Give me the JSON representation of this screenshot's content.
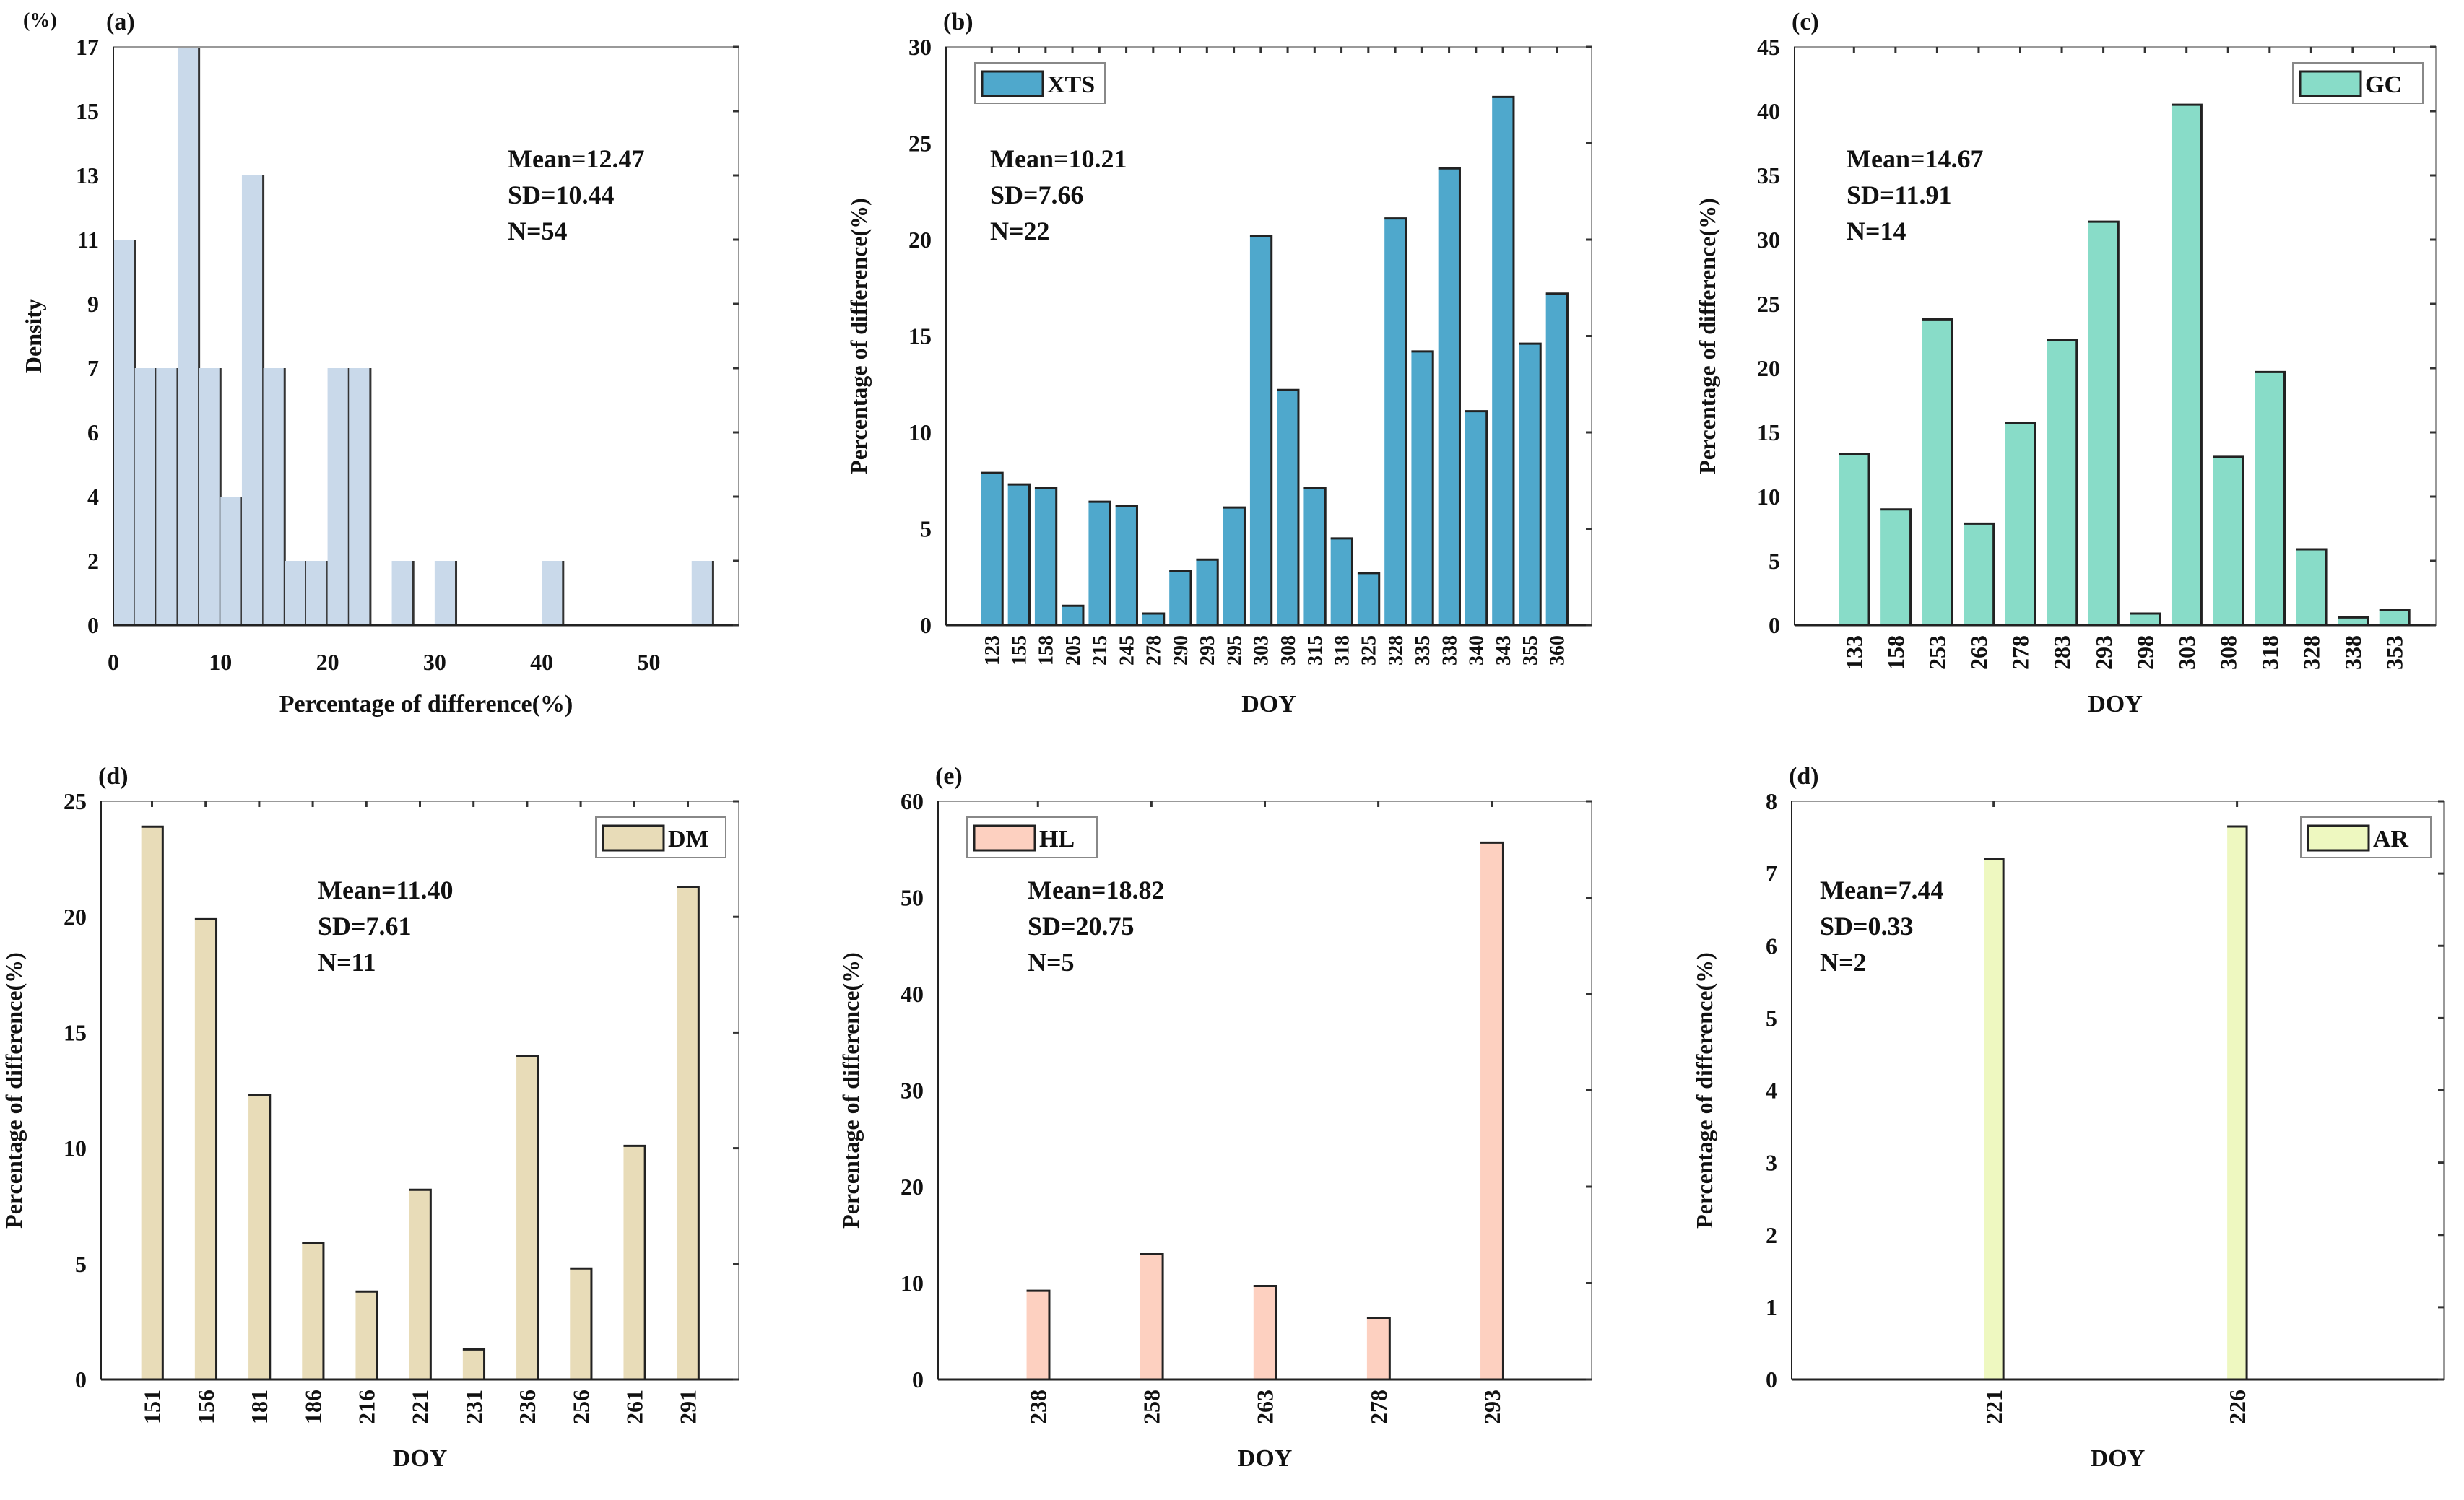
{
  "chart_data": [
    {
      "type": "bar",
      "subtype": "histogram",
      "panel_label": "(a)",
      "unit_label": "(%)",
      "xlabel": "Percentage of difference(%)",
      "ylabel": "Density",
      "bin_edges": [
        0,
        2,
        4,
        6,
        8,
        10,
        12,
        14,
        16,
        18,
        20,
        22,
        24,
        26,
        28,
        30,
        32,
        34,
        36,
        38,
        40,
        42,
        44,
        46,
        48,
        50,
        52,
        54,
        56
      ],
      "values": [
        11,
        7,
        7,
        17,
        7,
        4,
        13,
        7,
        2,
        2,
        7,
        7,
        0,
        2,
        0,
        2,
        0,
        0,
        0,
        0,
        2,
        0,
        0,
        0,
        0,
        0,
        0,
        2
      ],
      "xticks": [
        "0",
        "10",
        "20",
        "30",
        "40",
        "50"
      ],
      "yticks": [
        "0",
        "2",
        "4",
        "6",
        "7",
        "9",
        "11",
        "13",
        "15",
        "17"
      ],
      "xlim": [
        0,
        58.4
      ],
      "stats": [
        "Mean=12.47",
        "SD=10.44",
        "N=54"
      ],
      "color": "#c9d9ea"
    },
    {
      "type": "bar",
      "panel_label": "(b)",
      "xlabel": "DOY",
      "ylabel": "Percentage of difference(%)",
      "legend": "XTS",
      "legend_position": "top-left",
      "categories": [
        "123",
        "155",
        "158",
        "205",
        "215",
        "245",
        "278",
        "290",
        "293",
        "295",
        "303",
        "308",
        "315",
        "318",
        "325",
        "328",
        "335",
        "338",
        "340",
        "343",
        "355",
        "360"
      ],
      "values": [
        7.9,
        7.3,
        7.1,
        1.0,
        6.4,
        6.2,
        0.6,
        2.8,
        3.4,
        6.1,
        20.2,
        12.2,
        7.1,
        4.5,
        2.7,
        21.1,
        14.2,
        23.7,
        11.1,
        27.4,
        14.6,
        17.2
      ],
      "ylim": [
        0,
        30
      ],
      "yticks": [
        "0",
        "5",
        "10",
        "15",
        "20",
        "25",
        "30"
      ],
      "stats": [
        "Mean=10.21",
        "SD=7.66",
        "N=22"
      ],
      "color": "#4fa8cc"
    },
    {
      "type": "bar",
      "panel_label": "(c)",
      "xlabel": "DOY",
      "ylabel": "Percentage of difference(%)",
      "legend": "GC",
      "legend_position": "top-right",
      "categories": [
        "133",
        "158",
        "253",
        "263",
        "278",
        "283",
        "293",
        "298",
        "303",
        "308",
        "318",
        "328",
        "338",
        "353"
      ],
      "values": [
        13.3,
        9.0,
        23.8,
        7.9,
        15.7,
        22.2,
        31.4,
        0.9,
        40.5,
        13.1,
        19.7,
        5.9,
        0.6,
        1.2
      ],
      "ylim": [
        0,
        45
      ],
      "yticks": [
        "0",
        "5",
        "10",
        "15",
        "20",
        "25",
        "30",
        "35",
        "40",
        "45"
      ],
      "stats": [
        "Mean=14.67",
        "SD=11.91",
        "N=14"
      ],
      "color": "#88dcc8"
    },
    {
      "type": "bar",
      "panel_label": "(d)",
      "xlabel": "DOY",
      "ylabel": "Percentage of difference(%)",
      "legend": "DM",
      "legend_position": "top-right",
      "categories": [
        "151",
        "156",
        "181",
        "186",
        "216",
        "221",
        "231",
        "236",
        "256",
        "261",
        "291"
      ],
      "values": [
        23.9,
        19.9,
        12.3,
        5.9,
        3.8,
        8.2,
        1.3,
        14.0,
        4.8,
        10.1,
        21.3
      ],
      "ylim": [
        0,
        25
      ],
      "yticks": [
        "0",
        "5",
        "10",
        "15",
        "20",
        "25"
      ],
      "stats": [
        "Mean=11.40",
        "SD=7.61",
        "N=11"
      ],
      "color": "#e8dcb8"
    },
    {
      "type": "bar",
      "panel_label": "(e)",
      "xlabel": "DOY",
      "ylabel": "Percentage of difference(%)",
      "legend": "HL",
      "legend_position": "top-left",
      "categories": [
        "238",
        "258",
        "263",
        "278",
        "293"
      ],
      "values": [
        9.2,
        13.0,
        9.7,
        6.4,
        55.7
      ],
      "ylim": [
        0,
        60
      ],
      "yticks": [
        "0",
        "10",
        "20",
        "30",
        "40",
        "50",
        "60"
      ],
      "stats": [
        "Mean=18.82",
        "SD=20.75",
        "N=5"
      ],
      "color": "#fdd0c0"
    },
    {
      "type": "bar",
      "panel_label": "(d)",
      "xlabel": "DOY",
      "ylabel": "Percentage of difference(%)",
      "legend": "AR",
      "legend_position": "top-right",
      "categories": [
        "221",
        "226"
      ],
      "values": [
        7.2,
        7.65
      ],
      "ylim": [
        0,
        8
      ],
      "yticks": [
        "0",
        "1",
        "2",
        "3",
        "4",
        "5",
        "6",
        "7",
        "8"
      ],
      "stats": [
        "Mean=7.44",
        "SD=0.33",
        "N=2"
      ],
      "color": "#eef8c0"
    }
  ]
}
